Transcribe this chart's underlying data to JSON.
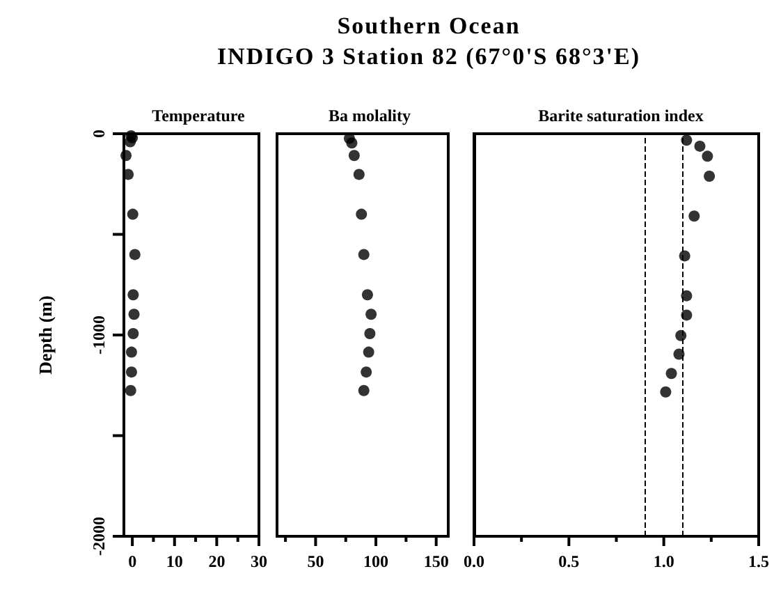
{
  "chart_data": [
    {
      "type": "scatter",
      "title": "Temperature",
      "ylabel": "Depth (m)",
      "annotations": [
        "Southern Ocean",
        "INDIGO 3 Station 82 (67°0'S 68°3'E)"
      ],
      "x": [
        -0.3,
        0,
        -0.5,
        -1.5,
        -1,
        0.1,
        0.6,
        0.2,
        0.4,
        0.2,
        -0.2,
        -0.2,
        -0.4
      ],
      "values": [
        -10,
        -20,
        -40,
        -108,
        -202,
        -400,
        -600,
        -800,
        -897,
        -993,
        -1085,
        -1184,
        -1276
      ],
      "color": "#000000",
      "marker": "circle",
      "xlim": [
        -2,
        30
      ],
      "xticks": [
        0,
        {
          "value": 5,
          "label": null
        },
        10,
        {
          "value": 15,
          "label": null
        },
        20,
        {
          "value": 25,
          "label": null
        },
        30
      ],
      "ylim": [
        -2000,
        0
      ],
      "yticks": [
        -2000,
        {
          "value": -1500,
          "label": null
        },
        -1000,
        {
          "value": -500,
          "label": null
        },
        0
      ]
    },
    {
      "type": "scatter",
      "title": "Ba molality",
      "tick_labels": "x",
      "x": [
        78,
        80,
        82,
        86,
        88,
        90,
        93,
        96,
        95,
        94,
        92,
        90
      ],
      "values": [
        -23,
        -46,
        -108,
        -202,
        -400,
        -600,
        -800,
        -897,
        -993,
        -1085,
        -1184,
        -1276
      ],
      "color": "#000000",
      "marker": "circle",
      "xlim": [
        18,
        160
      ],
      "xticks": [
        {
          "value": 25,
          "label": null
        },
        50,
        {
          "value": 75,
          "label": null
        },
        100,
        {
          "value": 125,
          "label": null
        },
        150
      ],
      "ylim": [
        -2000,
        0
      ]
    },
    {
      "type": "scatter",
      "title": "Barite saturation index",
      "tick_labels": "x",
      "x": [
        1.12,
        1.19,
        1.23,
        1.24,
        1.16,
        1.11,
        1.12,
        1.12,
        1.09,
        1.08,
        1.04,
        1.01
      ],
      "values": [
        -32,
        -62,
        -112,
        -211,
        -409,
        -607,
        -805,
        -901,
        -1003,
        -1095,
        -1191,
        -1283
      ],
      "color": "#000000",
      "marker": "circle",
      "xlim": [
        0,
        1.5
      ],
      "xticks": [
        {
          "value": 0,
          "label": "0.0"
        },
        {
          "value": 0.25,
          "label": null
        },
        {
          "value": 0.5,
          "label": "0.5"
        },
        {
          "value": 0.75,
          "label": null
        },
        {
          "value": 1,
          "label": "1.0"
        },
        {
          "value": 1.25,
          "label": null
        },
        {
          "value": 1.5,
          "label": "1.5"
        }
      ],
      "ylim": [
        -2000,
        0
      ],
      "ref_lines": [
        {
          "axis": "x",
          "value": 0.9,
          "line_style": "dashed"
        },
        {
          "axis": "x",
          "value": 1.1,
          "line_style": "dashed"
        }
      ]
    }
  ]
}
